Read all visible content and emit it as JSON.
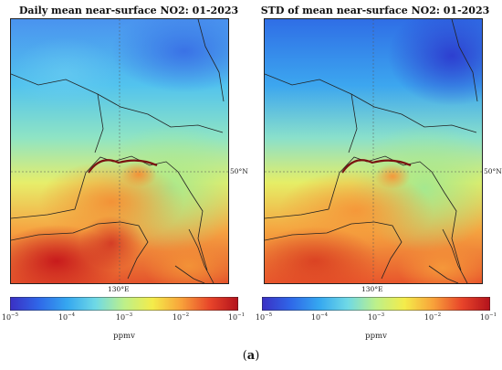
{
  "panels": [
    {
      "title": "Daily mean near-surface NO2: 01-2023",
      "lon_label": "130°E",
      "lat_label": "50°N",
      "colorbar": {
        "ticks": [
          {
            "base": "10",
            "exp": "−5"
          },
          {
            "base": "10",
            "exp": "−4"
          },
          {
            "base": "10",
            "exp": "−3"
          },
          {
            "base": "10",
            "exp": "−2"
          },
          {
            "base": "10",
            "exp": "−1"
          }
        ],
        "unit": "ppmv"
      }
    },
    {
      "title": "STD of mean near-surface NO2: 01-2023",
      "lon_label": "130°E",
      "lat_label": "50°N",
      "colorbar": {
        "ticks": [
          {
            "base": "10",
            "exp": "−5"
          },
          {
            "base": "10",
            "exp": "−4"
          },
          {
            "base": "10",
            "exp": "−3"
          },
          {
            "base": "10",
            "exp": "−2"
          },
          {
            "base": "10",
            "exp": "−1"
          }
        ],
        "unit": "ppmv"
      }
    }
  ],
  "caption": {
    "open": "(",
    "letter": "a",
    "close": ")"
  },
  "colormap": [
    "#3b2fc4",
    "#2f67e8",
    "#35a7f0",
    "#6fd9e6",
    "#bdf08a",
    "#f4ec4a",
    "#f8a23a",
    "#e8452a",
    "#b3121c"
  ],
  "colorbar_scale": "log"
}
